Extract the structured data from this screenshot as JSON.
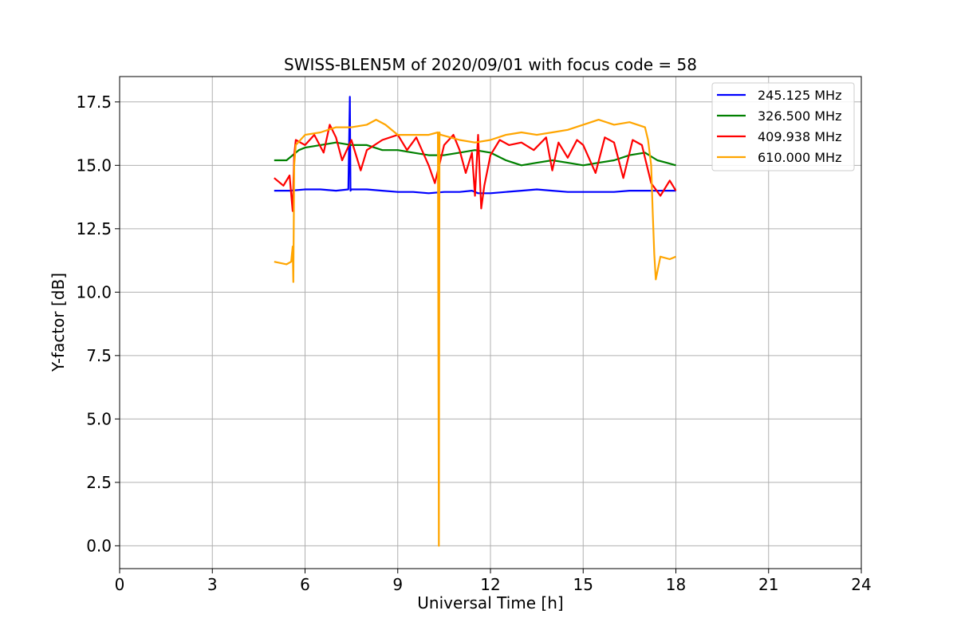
{
  "chart_data": {
    "type": "line",
    "title": "SWISS-BLEN5M of 2020/09/01 with focus code = 58",
    "xlabel": "Universal Time [h]",
    "ylabel": "Y-factor [dB]",
    "xlim": [
      0,
      24
    ],
    "ylim": [
      -0.9,
      18.5
    ],
    "xticks": [
      0,
      3,
      6,
      9,
      12,
      15,
      18,
      21,
      24
    ],
    "xtick_labels": [
      "0",
      "3",
      "6",
      "9",
      "12",
      "15",
      "18",
      "21",
      "24"
    ],
    "yticks": [
      0.0,
      2.5,
      5.0,
      7.5,
      10.0,
      12.5,
      15.0,
      17.5
    ],
    "ytick_labels": [
      "0.0",
      "2.5",
      "5.0",
      "7.5",
      "10.0",
      "12.5",
      "15.0",
      "17.5"
    ],
    "grid": true,
    "legend_position": "top-right",
    "series": [
      {
        "name": "245.125 MHz",
        "color": "#0000ff",
        "x": [
          5.0,
          5.5,
          6.0,
          6.5,
          7.0,
          7.4,
          7.45,
          7.47,
          7.5,
          8.0,
          8.5,
          9.0,
          9.5,
          10.0,
          10.5,
          11.0,
          11.4,
          11.6,
          12.0,
          12.5,
          13.0,
          13.5,
          14.0,
          14.5,
          15.0,
          15.5,
          16.0,
          16.5,
          17.0,
          17.5,
          18.0
        ],
        "y": [
          14.0,
          14.0,
          14.05,
          14.05,
          14.0,
          14.05,
          17.7,
          14.0,
          14.05,
          14.05,
          14.0,
          13.95,
          13.95,
          13.9,
          13.95,
          13.95,
          14.0,
          13.9,
          13.9,
          13.95,
          14.0,
          14.05,
          14.0,
          13.95,
          13.95,
          13.95,
          13.95,
          14.0,
          14.0,
          14.0,
          14.0
        ]
      },
      {
        "name": "326.500 MHz",
        "color": "#008000",
        "x": [
          5.0,
          5.4,
          5.6,
          5.8,
          6.0,
          6.5,
          7.0,
          7.5,
          8.0,
          8.5,
          9.0,
          9.5,
          10.0,
          10.5,
          11.0,
          11.5,
          12.0,
          12.5,
          13.0,
          13.5,
          14.0,
          14.5,
          15.0,
          15.5,
          16.0,
          16.5,
          17.0,
          17.4,
          17.7,
          18.0
        ],
        "y": [
          15.2,
          15.2,
          15.4,
          15.6,
          15.7,
          15.8,
          15.9,
          15.8,
          15.8,
          15.6,
          15.6,
          15.5,
          15.4,
          15.4,
          15.5,
          15.6,
          15.5,
          15.2,
          15.0,
          15.1,
          15.2,
          15.1,
          15.0,
          15.1,
          15.2,
          15.4,
          15.5,
          15.2,
          15.1,
          15.0
        ]
      },
      {
        "name": "409.938 MHz",
        "color": "#ff0000",
        "x": [
          5.0,
          5.3,
          5.5,
          5.6,
          5.65,
          5.7,
          6.0,
          6.3,
          6.6,
          6.8,
          7.0,
          7.2,
          7.5,
          7.8,
          8.0,
          8.5,
          9.0,
          9.3,
          9.6,
          10.0,
          10.2,
          10.5,
          10.8,
          11.0,
          11.2,
          11.4,
          11.5,
          11.6,
          11.7,
          11.8,
          12.0,
          12.3,
          12.6,
          13.0,
          13.4,
          13.8,
          14.0,
          14.2,
          14.5,
          14.8,
          15.0,
          15.4,
          15.7,
          16.0,
          16.3,
          16.6,
          16.9,
          17.2,
          17.5,
          17.8,
          18.0
        ],
        "y": [
          14.5,
          14.2,
          14.6,
          13.2,
          15.4,
          16.0,
          15.8,
          16.2,
          15.5,
          16.6,
          16.1,
          15.2,
          16.0,
          14.8,
          15.6,
          16.0,
          16.2,
          15.6,
          16.1,
          15.0,
          14.3,
          15.8,
          16.2,
          15.6,
          14.7,
          15.5,
          13.8,
          16.2,
          13.3,
          14.2,
          15.4,
          16.0,
          15.8,
          15.9,
          15.6,
          16.1,
          14.8,
          15.9,
          15.3,
          16.0,
          15.8,
          14.7,
          16.1,
          15.9,
          14.5,
          16.0,
          15.8,
          14.3,
          13.8,
          14.4,
          14.0
        ]
      },
      {
        "name": "610.000 MHz",
        "color": "#ffa500",
        "x": [
          5.0,
          5.4,
          5.55,
          5.6,
          5.62,
          5.65,
          5.7,
          6.0,
          6.5,
          7.0,
          7.5,
          8.0,
          8.3,
          8.6,
          9.0,
          9.5,
          10.0,
          10.3,
          10.33,
          10.35,
          10.37,
          10.4,
          11.0,
          11.5,
          12.0,
          12.5,
          13.0,
          13.5,
          14.0,
          14.5,
          15.0,
          15.5,
          16.0,
          16.5,
          17.0,
          17.1,
          17.2,
          17.25,
          17.3,
          17.35,
          17.5,
          17.8,
          18.0
        ],
        "y": [
          11.2,
          11.1,
          11.2,
          11.8,
          10.4,
          15.0,
          15.8,
          16.2,
          16.3,
          16.5,
          16.5,
          16.6,
          16.8,
          16.6,
          16.2,
          16.2,
          16.2,
          16.3,
          0.0,
          16.3,
          16.2,
          16.2,
          16.0,
          15.9,
          16.0,
          16.2,
          16.3,
          16.2,
          16.3,
          16.4,
          16.6,
          16.8,
          16.6,
          16.7,
          16.5,
          16.0,
          15.0,
          13.2,
          11.5,
          10.5,
          11.4,
          11.3,
          11.4
        ]
      }
    ]
  }
}
